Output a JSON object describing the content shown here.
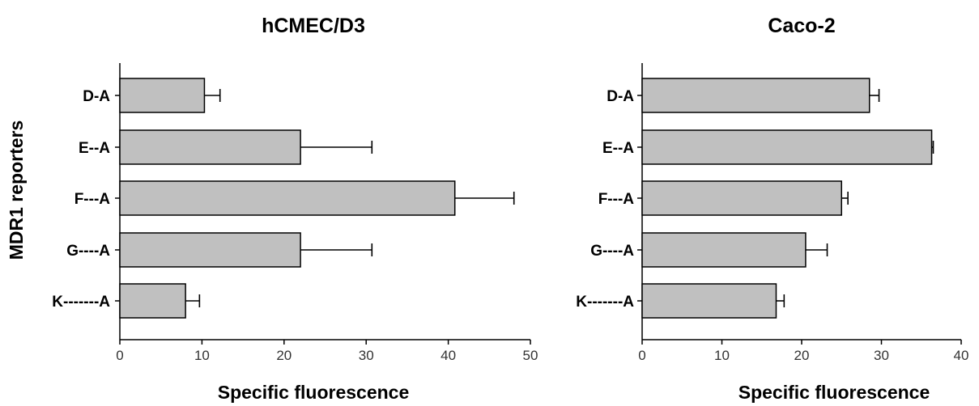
{
  "figure": {
    "ylabel": "MDR1 reporters"
  },
  "chart_data": [
    {
      "type": "bar",
      "orientation": "horizontal",
      "title": "hCMEC/D3",
      "xlabel": "Specific fluorescence",
      "categories": [
        "D-A",
        "E--A",
        "F---A",
        "G----A",
        "K-------A"
      ],
      "values": [
        10.3,
        22.0,
        40.8,
        22.0,
        8.0
      ],
      "errors": [
        1.9,
        8.7,
        7.2,
        8.7,
        1.7
      ],
      "xlim": [
        0,
        50
      ],
      "xticks": [
        0,
        10,
        20,
        30,
        40,
        50
      ],
      "bar_color": "#c0c0c0",
      "grid": false
    },
    {
      "type": "bar",
      "orientation": "horizontal",
      "title": "Caco-2",
      "xlabel": "Specific fluorescence",
      "categories": [
        "D-A",
        "E--A",
        "F---A",
        "G----A",
        "K-------A"
      ],
      "values": [
        28.5,
        36.3,
        25.0,
        20.5,
        16.8
      ],
      "errors": [
        1.2,
        0.2,
        0.8,
        2.7,
        1.0
      ],
      "xlim": [
        0,
        40
      ],
      "xticks": [
        0,
        10,
        20,
        30,
        40
      ],
      "bar_color": "#c0c0c0",
      "grid": false
    }
  ]
}
